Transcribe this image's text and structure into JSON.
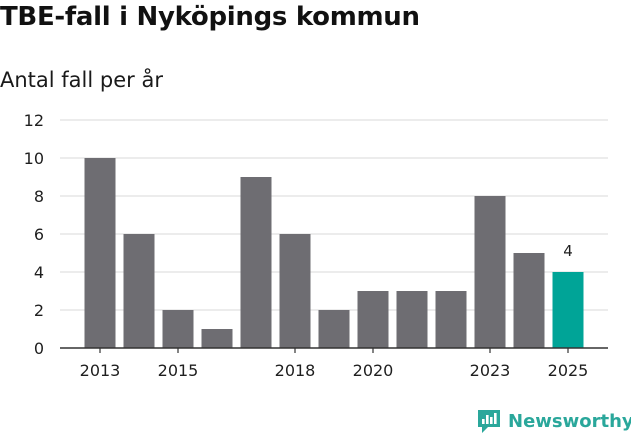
{
  "title": "TBE-fall i Nyköpings kommun",
  "subtitle": "Antal fall per år",
  "brand": {
    "name": "Newsworthy",
    "icon": "newsworthy-logo-icon"
  },
  "colors": {
    "bar": "#6e6d72",
    "highlight": "#00a497",
    "grid": "#d9d9d9",
    "axis": "#333333"
  },
  "chart_data": {
    "type": "bar",
    "categories": [
      2013,
      2014,
      2015,
      2016,
      2017,
      2018,
      2019,
      2020,
      2021,
      2022,
      2023,
      2024,
      2025
    ],
    "values": [
      10,
      6,
      2,
      1,
      9,
      6,
      2,
      3,
      3,
      3,
      8,
      5,
      4
    ],
    "x_tick_labels": [
      "2013",
      "2015",
      "2018",
      "2020",
      "2023",
      "2025"
    ],
    "y_ticks": [
      0,
      2,
      4,
      6,
      8,
      10,
      12
    ],
    "ylim": [
      0,
      12
    ],
    "highlight_category": 2025,
    "data_labels": [
      {
        "category": 2025,
        "text": "4"
      }
    ],
    "grid": true,
    "legend": "none"
  }
}
